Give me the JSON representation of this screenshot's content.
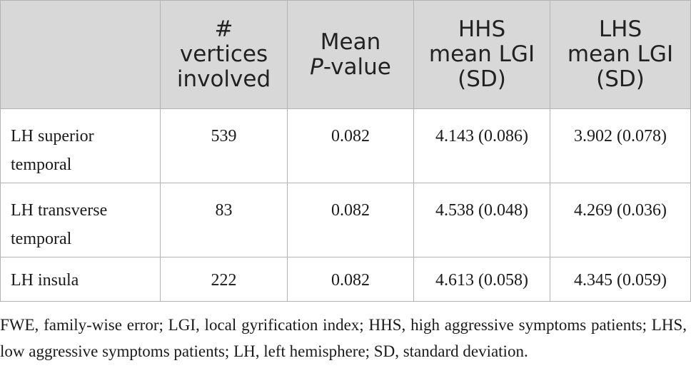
{
  "table": {
    "headers": [
      {
        "lines": [
          ""
        ]
      },
      {
        "lines": [
          "#",
          "vertices",
          "involved"
        ]
      },
      {
        "lines": [
          "Mean"
        ],
        "italic_part": "P",
        "rest": "-value"
      },
      {
        "lines": [
          "HHS",
          "mean LGI",
          "(SD)"
        ]
      },
      {
        "lines": [
          "LHS",
          "mean LGI",
          "(SD)"
        ]
      }
    ],
    "rows": [
      {
        "region_lines": [
          "LH superior",
          "temporal"
        ],
        "vertices": "539",
        "mean_p": "0.082",
        "hhs": "4.143 (0.086)",
        "lhs": "3.902 (0.078)"
      },
      {
        "region_lines": [
          "LH transverse",
          "temporal"
        ],
        "vertices": "83",
        "mean_p": "0.082",
        "hhs": "4.538 (0.048)",
        "lhs": "4.269 (0.036)"
      },
      {
        "region_lines": [
          "LH insula"
        ],
        "vertices": "222",
        "mean_p": "0.082",
        "hhs": "4.613 (0.058)",
        "lhs": "4.345 (0.059)"
      }
    ]
  },
  "footnote": "FWE, family-wise error; LGI, local gyrification index; HHS, high aggressive symptoms patients; LHS, low aggressive symptoms patients; LH, left hemisphere; SD, standard deviation.",
  "colors": {
    "header_bg": "#d8d8d8",
    "border": "#b3b3b3",
    "text": "#1a1a1a"
  }
}
